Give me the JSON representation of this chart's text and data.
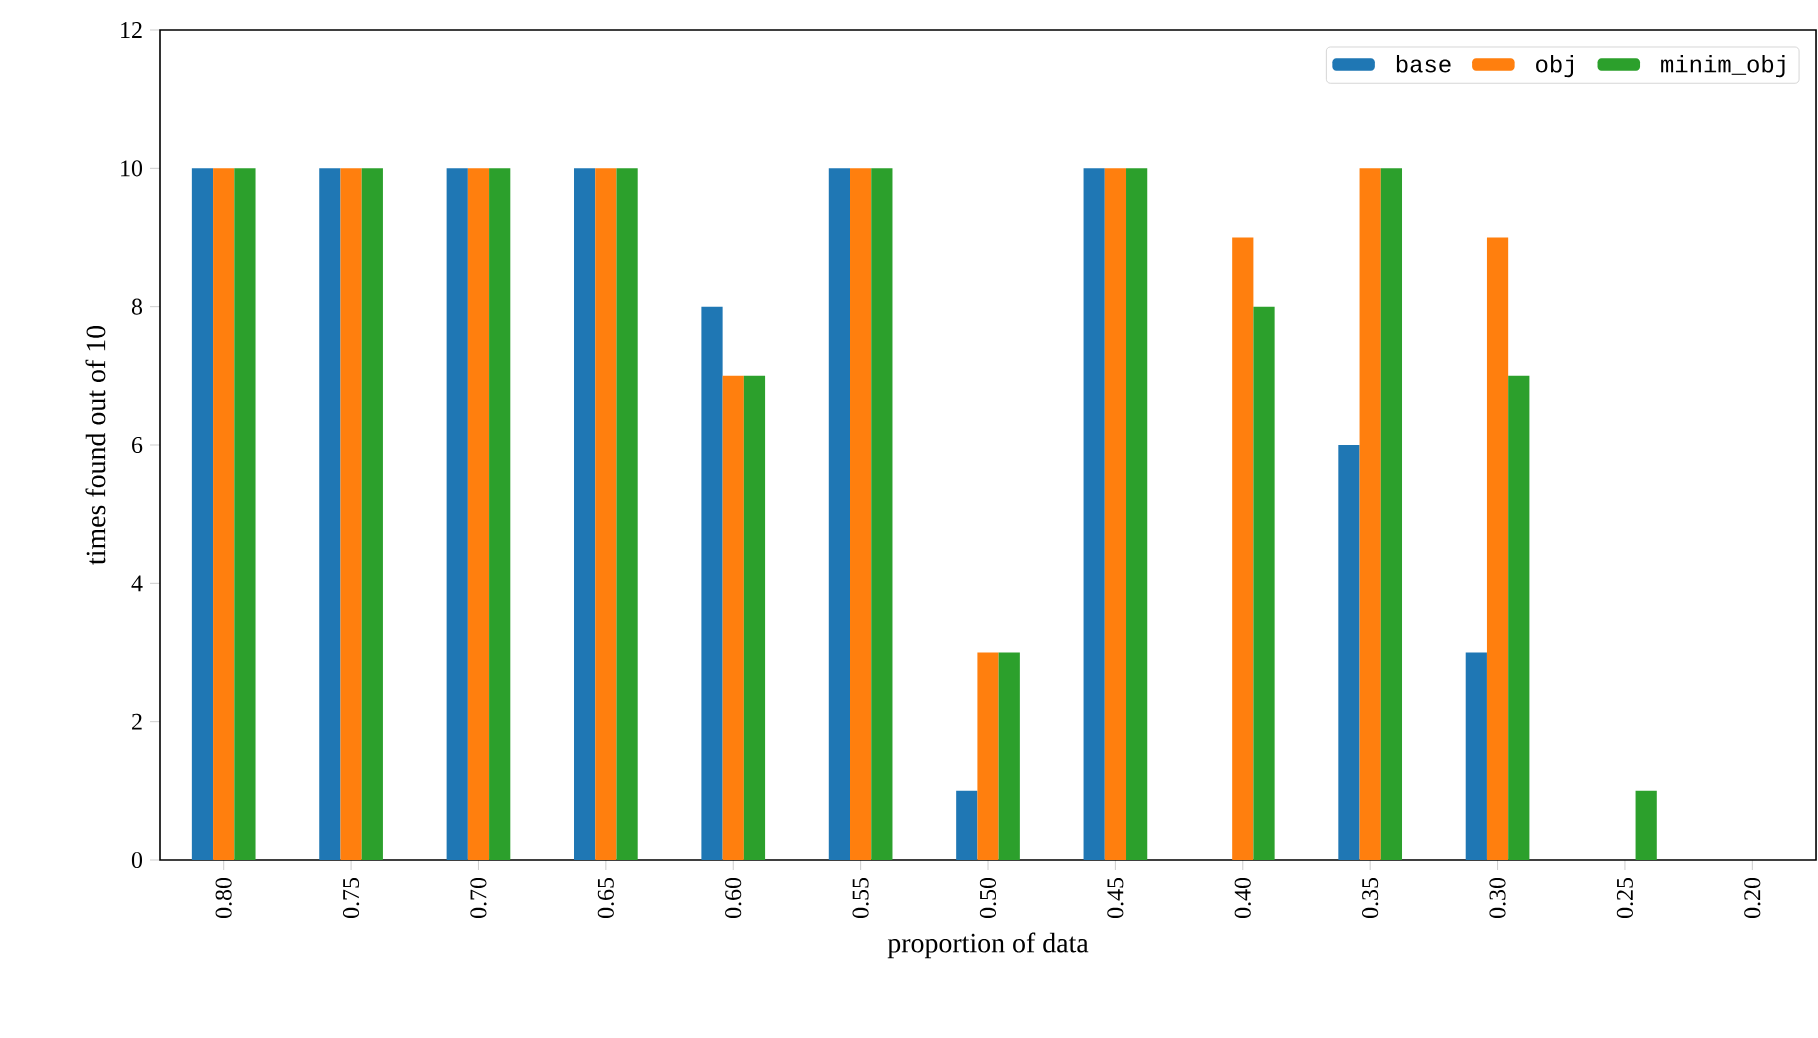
{
  "chart_data": {
    "type": "bar",
    "xlabel": "proportion of data",
    "ylabel": "times found out of 10",
    "categories": [
      "0.80",
      "0.75",
      "0.70",
      "0.65",
      "0.60",
      "0.55",
      "0.50",
      "0.45",
      "0.40",
      "0.35",
      "0.30",
      "0.25",
      "0.20"
    ],
    "series": [
      {
        "name": "base",
        "color": "#1f77b4",
        "values": [
          10,
          10,
          10,
          10,
          8,
          10,
          1,
          10,
          0,
          6,
          3,
          0,
          0
        ]
      },
      {
        "name": "obj",
        "color": "#ff7f0e",
        "values": [
          10,
          10,
          10,
          10,
          7,
          10,
          3,
          10,
          9,
          10,
          9,
          0,
          0
        ]
      },
      {
        "name": "minim_obj",
        "color": "#2ca02c",
        "values": [
          10,
          10,
          10,
          10,
          7,
          10,
          3,
          10,
          8,
          10,
          7,
          1,
          0
        ]
      }
    ],
    "ylim": [
      0,
      12
    ],
    "yticks": [
      0,
      2,
      4,
      6,
      8,
      10,
      12
    ],
    "legend": "top right",
    "grid": false
  }
}
